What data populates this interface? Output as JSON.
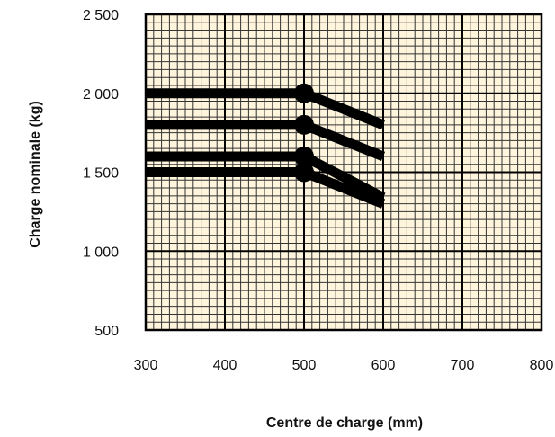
{
  "chart_data": {
    "type": "line",
    "title": "",
    "xlabel": "Centre de charge (mm)",
    "ylabel": "Charge nominale (kg)",
    "xlim": [
      300,
      800
    ],
    "ylim": [
      500,
      2500
    ],
    "x_ticks": [
      300,
      400,
      500,
      600,
      700,
      800
    ],
    "y_ticks": [
      500,
      1000,
      1500,
      2000,
      2500
    ],
    "x_tick_labels": [
      "300",
      "400",
      "500",
      "600",
      "700",
      "800"
    ],
    "y_tick_labels": [
      "500",
      "1 000",
      "1 500",
      "2 000",
      "2 500"
    ],
    "grid": true,
    "series": [
      {
        "x": [
          300,
          500,
          600
        ],
        "y": [
          2000,
          2000,
          1800
        ]
      },
      {
        "x": [
          300,
          500,
          600
        ],
        "y": [
          1800,
          1800,
          1600
        ]
      },
      {
        "x": [
          300,
          500,
          600
        ],
        "y": [
          1600,
          1600,
          1340
        ]
      },
      {
        "x": [
          300,
          500,
          600
        ],
        "y": [
          1500,
          1500,
          1300
        ]
      }
    ],
    "markers": [
      {
        "x": 500,
        "y": 2000
      },
      {
        "x": 500,
        "y": 1800
      },
      {
        "x": 500,
        "y": 1600
      },
      {
        "x": 500,
        "y": 1500
      }
    ],
    "colors": {
      "plot_background": "#fff5dc",
      "grid_major": "#000000",
      "grid_minor": "#333333",
      "series": "#000000"
    }
  }
}
